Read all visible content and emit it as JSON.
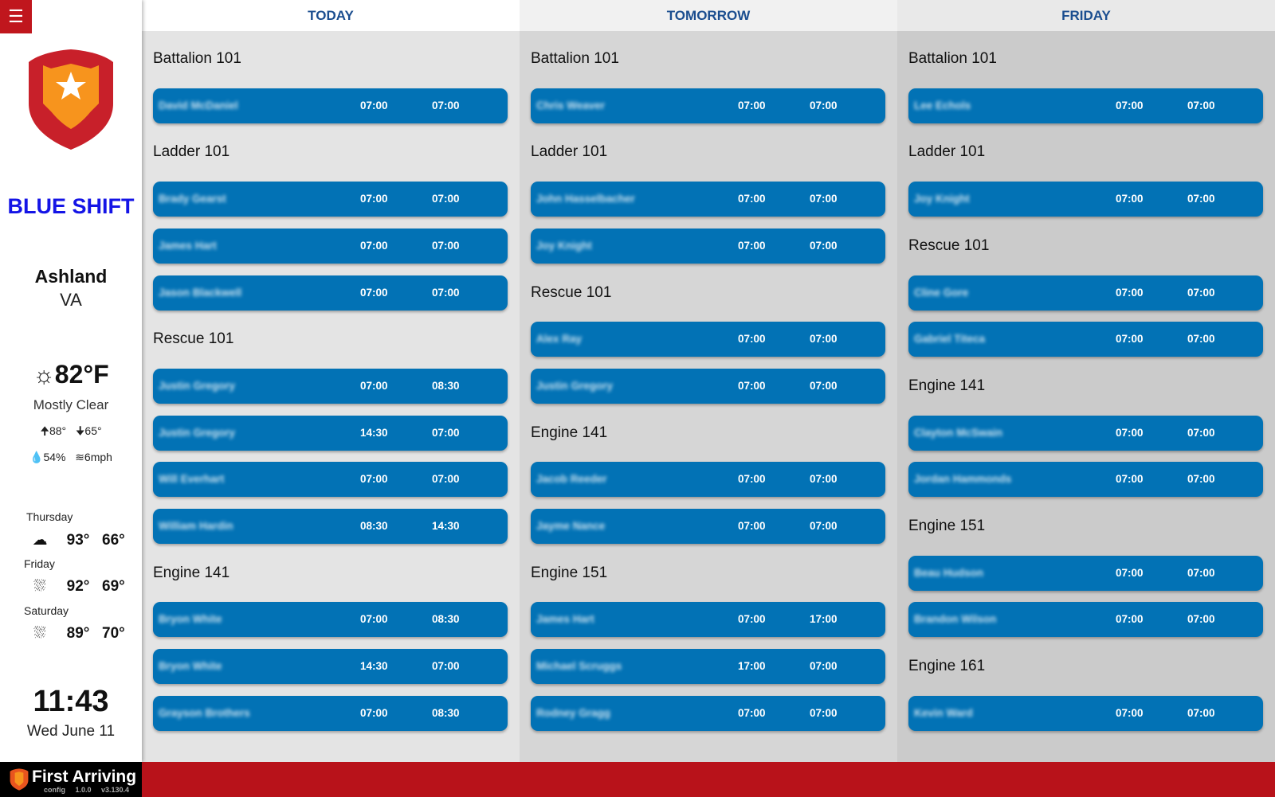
{
  "sidebar": {
    "shift": "BLUE SHIFT",
    "city": "Ashland",
    "state": "VA",
    "weather": {
      "icon": "sun-icon",
      "temp": "82°F",
      "condition": "Mostly Clear",
      "high": "88°",
      "low": "65°",
      "humidity": "54%",
      "wind": "6mph"
    },
    "forecast": [
      {
        "day": "Thursday",
        "icon": "cloud-sun-icon",
        "high": "93°",
        "low": "66°"
      },
      {
        "day": "Friday",
        "icon": "rain-icon",
        "high": "92°",
        "low": "69°"
      },
      {
        "day": "Saturday",
        "icon": "rain-icon",
        "high": "89°",
        "low": "70°"
      }
    ],
    "time": "11:43",
    "date": "Wed June 11"
  },
  "footer": {
    "brand": "First Arriving",
    "config": "config 1.0.0",
    "version": "v3.130.4"
  },
  "colors": {
    "accent": "#0272b5",
    "brand_red": "#b8121a",
    "shift": "#1414e6"
  },
  "columns": [
    {
      "title": "TODAY",
      "sections": [
        {
          "name": "Battalion 101",
          "rows": [
            [
              "David McDaniel",
              "07:00",
              "07:00"
            ]
          ]
        },
        {
          "name": "Ladder 101",
          "rows": [
            [
              "Brady Gearst",
              "07:00",
              "07:00"
            ],
            [
              "James Hart",
              "07:00",
              "07:00"
            ],
            [
              "Jason Blackwell",
              "07:00",
              "07:00"
            ]
          ]
        },
        {
          "name": "Rescue 101",
          "rows": [
            [
              "Justin Gregory",
              "07:00",
              "08:30"
            ],
            [
              "Justin Gregory",
              "14:30",
              "07:00"
            ],
            [
              "Will Everhart",
              "07:00",
              "07:00"
            ],
            [
              "William Hardin",
              "08:30",
              "14:30"
            ]
          ]
        },
        {
          "name": "Engine 141",
          "rows": [
            [
              "Bryon White",
              "07:00",
              "08:30"
            ],
            [
              "Bryon White",
              "14:30",
              "07:00"
            ],
            [
              "Grayson Brothers",
              "07:00",
              "08:30"
            ]
          ]
        }
      ]
    },
    {
      "title": "TOMORROW",
      "sections": [
        {
          "name": "Battalion 101",
          "rows": [
            [
              "Chris Weaver",
              "07:00",
              "07:00"
            ]
          ]
        },
        {
          "name": "Ladder 101",
          "rows": [
            [
              "John Hasselbacher",
              "07:00",
              "07:00"
            ],
            [
              "Joy Knight",
              "07:00",
              "07:00"
            ]
          ]
        },
        {
          "name": "Rescue 101",
          "rows": [
            [
              "Alex Ray",
              "07:00",
              "07:00"
            ],
            [
              "Justin Gregory",
              "07:00",
              "07:00"
            ]
          ]
        },
        {
          "name": "Engine 141",
          "rows": [
            [
              "Jacob Reeder",
              "07:00",
              "07:00"
            ],
            [
              "Jayme Nance",
              "07:00",
              "07:00"
            ]
          ]
        },
        {
          "name": "Engine 151",
          "rows": [
            [
              "James Hart",
              "07:00",
              "17:00"
            ],
            [
              "Michael Scruggs",
              "17:00",
              "07:00"
            ],
            [
              "Rodney Gragg",
              "07:00",
              "07:00"
            ]
          ]
        }
      ]
    },
    {
      "title": "FRIDAY",
      "sections": [
        {
          "name": "Battalion 101",
          "rows": [
            [
              "Lee Echols",
              "07:00",
              "07:00"
            ]
          ]
        },
        {
          "name": "Ladder 101",
          "rows": [
            [
              "Joy Knight",
              "07:00",
              "07:00"
            ]
          ]
        },
        {
          "name": "Rescue 101",
          "rows": [
            [
              "Cline Gore",
              "07:00",
              "07:00"
            ],
            [
              "Gabriel Titeca",
              "07:00",
              "07:00"
            ]
          ]
        },
        {
          "name": "Engine 141",
          "rows": [
            [
              "Clayton McSwain",
              "07:00",
              "07:00"
            ],
            [
              "Jordan Hammonds",
              "07:00",
              "07:00"
            ]
          ]
        },
        {
          "name": "Engine 151",
          "rows": [
            [
              "Beau Hudson",
              "07:00",
              "07:00"
            ],
            [
              "Brandon Wilson",
              "07:00",
              "07:00"
            ]
          ]
        },
        {
          "name": "Engine 161",
          "rows": [
            [
              "Kevin Ward",
              "07:00",
              "07:00"
            ]
          ]
        }
      ]
    }
  ]
}
